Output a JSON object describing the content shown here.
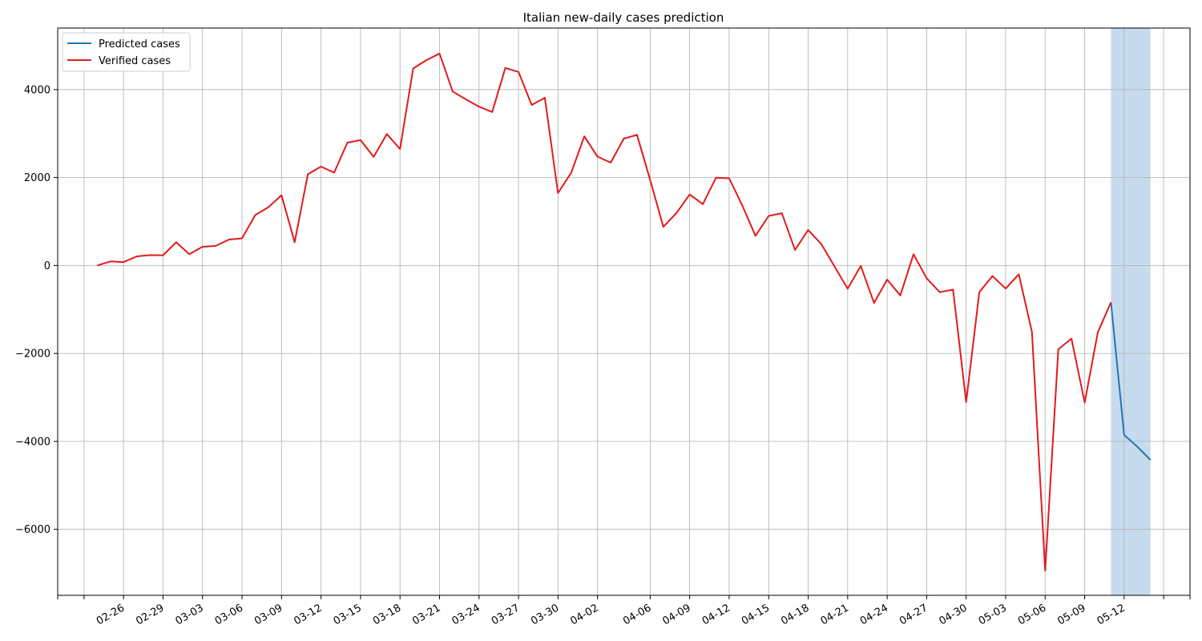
{
  "chart_data": {
    "type": "line",
    "title": "Italian new-daily cases prediction",
    "xlabel": "",
    "ylabel": "",
    "ylim": [
      -7500,
      5400
    ],
    "x_range": [
      "2020-02-21",
      "2020-05-17"
    ],
    "x_tick_dates": [
      "2020-02-26",
      "2020-02-29",
      "2020-03-03",
      "2020-03-06",
      "2020-03-09",
      "2020-03-12",
      "2020-03-15",
      "2020-03-18",
      "2020-03-21",
      "2020-03-24",
      "2020-03-27",
      "2020-03-30",
      "2020-04-02",
      "2020-04-06",
      "2020-04-09",
      "2020-04-12",
      "2020-04-15",
      "2020-04-18",
      "2020-04-21",
      "2020-04-24",
      "2020-04-27",
      "2020-04-30",
      "2020-05-03",
      "2020-05-06",
      "2020-05-09",
      "2020-05-12"
    ],
    "x_tick_labels": [
      "02-26",
      "02-29",
      "03-03",
      "03-06",
      "03-09",
      "03-12",
      "03-15",
      "03-18",
      "03-21",
      "03-24",
      "03-27",
      "03-30",
      "04-02",
      "04-06",
      "04-09",
      "04-12",
      "04-15",
      "04-18",
      "04-21",
      "04-24",
      "04-27",
      "04-30",
      "05-03",
      "05-06",
      "05-09",
      "05-12"
    ],
    "y_ticks": [
      4000,
      2000,
      0,
      -2000,
      -4000,
      -6000
    ],
    "y_tick_labels": [
      "4000",
      "2000",
      "0",
      "−2000",
      "−4000",
      "−6000"
    ],
    "grid": true,
    "legend_position": "top-left",
    "shaded_region": {
      "start": "2020-05-11",
      "end": "2020-05-14",
      "color": "#c6dcee"
    },
    "series": [
      {
        "name": "Predicted cases",
        "color": "#1f77b4",
        "x": [
          "2020-05-11",
          "2020-05-12",
          "2020-05-13",
          "2020-05-14"
        ],
        "values": [
          -840,
          -3850,
          -4120,
          -4420
        ]
      },
      {
        "name": "Verified cases",
        "color": "#e31a1c",
        "x": [
          "2020-02-24",
          "2020-02-25",
          "2020-02-26",
          "2020-02-27",
          "2020-02-28",
          "2020-02-29",
          "2020-03-01",
          "2020-03-02",
          "2020-03-03",
          "2020-03-04",
          "2020-03-05",
          "2020-03-06",
          "2020-03-07",
          "2020-03-08",
          "2020-03-09",
          "2020-03-10",
          "2020-03-11",
          "2020-03-12",
          "2020-03-13",
          "2020-03-14",
          "2020-03-15",
          "2020-03-16",
          "2020-03-17",
          "2020-03-18",
          "2020-03-19",
          "2020-03-20",
          "2020-03-21",
          "2020-03-22",
          "2020-03-23",
          "2020-03-24",
          "2020-03-25",
          "2020-03-26",
          "2020-03-27",
          "2020-03-28",
          "2020-03-29",
          "2020-03-30",
          "2020-03-31",
          "2020-04-01",
          "2020-04-02",
          "2020-04-03",
          "2020-04-04",
          "2020-04-05",
          "2020-04-06",
          "2020-04-07",
          "2020-04-08",
          "2020-04-09",
          "2020-04-10",
          "2020-04-11",
          "2020-04-12",
          "2020-04-13",
          "2020-04-14",
          "2020-04-15",
          "2020-04-16",
          "2020-04-17",
          "2020-04-18",
          "2020-04-19",
          "2020-04-20",
          "2020-04-21",
          "2020-04-22",
          "2020-04-23",
          "2020-04-24",
          "2020-04-25",
          "2020-04-26",
          "2020-04-27",
          "2020-04-28",
          "2020-04-29",
          "2020-04-30",
          "2020-05-01",
          "2020-05-02",
          "2020-05-03",
          "2020-05-04",
          "2020-05-05",
          "2020-05-06",
          "2020-05-07",
          "2020-05-08",
          "2020-05-09",
          "2020-05-10",
          "2020-05-11"
        ],
        "values": [
          0,
          93,
          78,
          207,
          237,
          233,
          528,
          258,
          427,
          445,
          590,
          617,
          1145,
          1326,
          1598,
          529,
          2076,
          2249,
          2111,
          2795,
          2853,
          2470,
          2989,
          2648,
          4480,
          4670,
          4821,
          3957,
          3780,
          3612,
          3491,
          4492,
          4401,
          3651,
          3815,
          1648,
          2107,
          2937,
          2477,
          2339,
          2886,
          2972,
          1941,
          880,
          1195,
          1615,
          1396,
          1996,
          1984,
          1363,
          675,
          1127,
          1189,
          355,
          809,
          486,
          -20,
          -528,
          -10,
          -851,
          -321,
          -680,
          256,
          -290,
          -608,
          -548,
          -3106,
          -608,
          -239,
          -525,
          -199,
          -1513,
          -6939,
          -1904,
          -1663,
          -3119,
          -1518,
          -836
        ]
      }
    ]
  }
}
